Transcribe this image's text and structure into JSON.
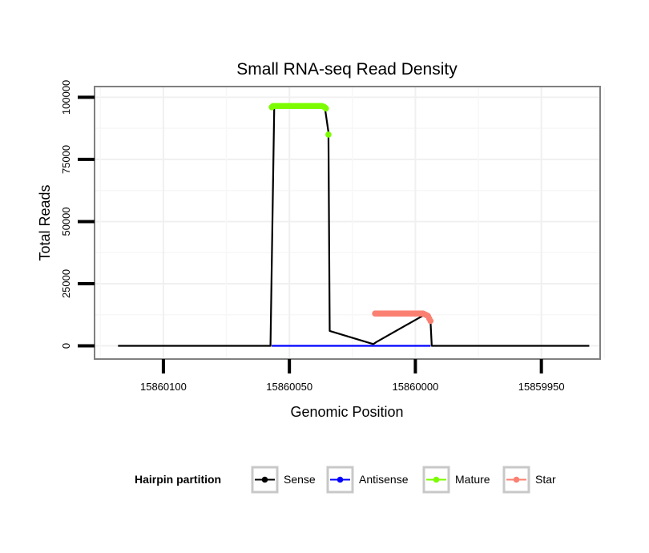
{
  "chart_data": {
    "type": "line",
    "title": "Small RNA-seq Read Density",
    "xlabel": "Genomic Position",
    "ylabel": "Total Reads",
    "xlim": [
      15860127,
      15859927
    ],
    "ylim": [
      -5000,
      104000
    ],
    "x_reversed": true,
    "grid": true,
    "legend_position": "bottom",
    "legend_title": "Hairpin partition",
    "x_ticks": [
      15860100,
      15860050,
      15860000,
      15859950
    ],
    "x_tick_labels": [
      "15860100",
      "15860050",
      "15860000",
      "15859950"
    ],
    "y_ticks": [
      0,
      25000,
      50000,
      75000,
      100000
    ],
    "y_tick_labels": [
      "0",
      "25000",
      "50000",
      "75000",
      "100000"
    ],
    "colors": {
      "Sense": "#000000",
      "Antisense": "#0000ff",
      "Mature": "#7cfc00",
      "Star": "#fa8072"
    },
    "series": [
      {
        "name": "Sense",
        "style": "line",
        "x": [
          15860118,
          15860057.5,
          15860056,
          15860036,
          15860034.5,
          15860034,
          15860017,
          15860016.5,
          15860015.5,
          15859995.5,
          15859994,
          15859993.5,
          15859931
        ],
        "y": [
          0,
          0,
          96500,
          96500,
          86000,
          6000,
          800,
          800,
          1500,
          13000,
          10000,
          0,
          0
        ]
      },
      {
        "name": "Antisense",
        "style": "line",
        "x": [
          15860057,
          15859994
        ],
        "y": [
          0,
          0
        ]
      },
      {
        "name": "Mature",
        "style": "points",
        "x": [
          15860057,
          15860056.5,
          15860056,
          15860055.5,
          15860055,
          15860054.5,
          15860054,
          15860053.5,
          15860053,
          15860052.5,
          15860052,
          15860051.5,
          15860051,
          15860050.5,
          15860050,
          15860049.5,
          15860049,
          15860048.5,
          15860048,
          15860047.5,
          15860047,
          15860046.5,
          15860046,
          15860045.5,
          15860045,
          15860044.5,
          15860044,
          15860043.5,
          15860043,
          15860042.5,
          15860042,
          15860041.5,
          15860041,
          15860040.5,
          15860040,
          15860039.5,
          15860039,
          15860038.5,
          15860038,
          15860037.5,
          15860037,
          15860036.5,
          15860036,
          15860035.5,
          15860034.5
        ],
        "y": [
          96000,
          96500,
          96500,
          96500,
          96500,
          96500,
          96500,
          96500,
          96500,
          96500,
          96500,
          96500,
          96500,
          96500,
          96500,
          96500,
          96500,
          96500,
          96500,
          96500,
          96500,
          96500,
          96500,
          96500,
          96500,
          96500,
          96500,
          96500,
          96500,
          96500,
          96500,
          96500,
          96500,
          96500,
          96500,
          96500,
          96500,
          96500,
          96500,
          96500,
          96500,
          96300,
          96000,
          95500,
          85000
        ]
      },
      {
        "name": "Star",
        "style": "points",
        "x": [
          15860016,
          15860015.5,
          15860015,
          15860014.5,
          15860014,
          15860013.5,
          15860013,
          15860012.5,
          15860012,
          15860011.5,
          15860011,
          15860010.5,
          15860010,
          15860009.5,
          15860009,
          15860008.5,
          15860008,
          15860007.5,
          15860007,
          15860006.5,
          15860006,
          15860005.5,
          15860005,
          15860004.5,
          15860004,
          15860003.5,
          15860003,
          15860002.5,
          15860002,
          15860001.5,
          15860001,
          15860000.5,
          15860000,
          15859999.5,
          15859999,
          15859998.5,
          15859998,
          15859997.5,
          15859997,
          15859996.5,
          15859996,
          15859995.5,
          15859995,
          15859994.5,
          15859994
        ],
        "y": [
          13000,
          13000,
          13000,
          13000,
          13000,
          13000,
          13000,
          13000,
          13000,
          13000,
          13000,
          13000,
          13000,
          13000,
          13000,
          13000,
          13000,
          13000,
          13000,
          13000,
          13000,
          13000,
          13000,
          13000,
          13000,
          13000,
          13000,
          13000,
          13000,
          13000,
          13000,
          13000,
          13000,
          13000,
          13000,
          13000,
          13000,
          13000,
          13000,
          12800,
          12500,
          12300,
          12000,
          11000,
          10000
        ]
      }
    ],
    "legend": [
      "Sense",
      "Antisense",
      "Mature",
      "Star"
    ]
  }
}
